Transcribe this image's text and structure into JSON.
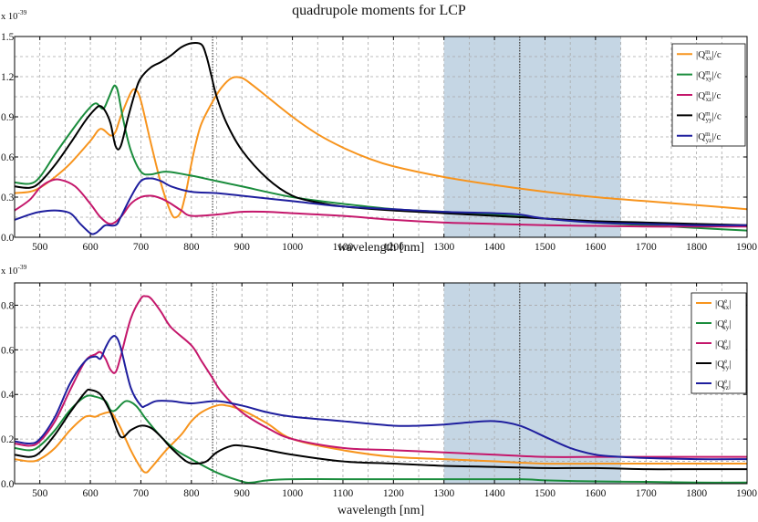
{
  "title": "quadrupole moments for LCP",
  "colors": {
    "orange": "#f7941d",
    "green": "#1a8c3c",
    "magenta": "#c4176b",
    "black": "#000000",
    "navy": "#1f1f9e",
    "band": "#c5d6e4",
    "grid": "#a8a8a8"
  },
  "chart_data": [
    {
      "type": "line",
      "id": "magnetic",
      "title": "quadrupole moments for LCP",
      "xlabel": "wavelength [nm]",
      "ylabel": "",
      "scale_label_base": "x 10",
      "scale_label_exp": "-39",
      "xlim": [
        450,
        1900
      ],
      "ylim": [
        0,
        1.5
      ],
      "xticks": [
        500,
        600,
        700,
        800,
        900,
        1000,
        1100,
        1200,
        1300,
        1400,
        1500,
        1600,
        1700,
        1800,
        1900
      ],
      "yticks": [
        0,
        0.3,
        0.6,
        0.9,
        1.2,
        1.5
      ],
      "ytick_labels": [
        "0.0",
        "0.3",
        "0.6",
        "0.9",
        "1.2",
        "1.5"
      ],
      "shaded_band": [
        1300,
        1650
      ],
      "vlines": [
        842,
        1450
      ],
      "legend_position": "top-right",
      "series": [
        {
          "name": "|Q^m_xx|/c",
          "sym": "Q",
          "sup": "m",
          "sub": "xx",
          "suffix": "|/c",
          "color": "#f7941d",
          "x": [
            450,
            480,
            500,
            530,
            560,
            600,
            620,
            640,
            650,
            660,
            680,
            690,
            700,
            720,
            740,
            760,
            770,
            780,
            790,
            800,
            810,
            820,
            840,
            860,
            880,
            900,
            920,
            950,
            1000,
            1050,
            1100,
            1150,
            1200,
            1300,
            1400,
            1500,
            1600,
            1700,
            1800,
            1900
          ],
          "y": [
            0.33,
            0.34,
            0.37,
            0.45,
            0.55,
            0.72,
            0.81,
            0.76,
            0.79,
            0.9,
            1.08,
            1.1,
            1.02,
            0.7,
            0.4,
            0.18,
            0.15,
            0.2,
            0.35,
            0.55,
            0.72,
            0.85,
            1.0,
            1.12,
            1.19,
            1.19,
            1.14,
            1.05,
            0.9,
            0.77,
            0.67,
            0.59,
            0.53,
            0.45,
            0.39,
            0.34,
            0.3,
            0.27,
            0.24,
            0.21
          ]
        },
        {
          "name": "|Q^m_xy|/c",
          "sym": "Q",
          "sup": "m",
          "sub": "xy",
          "suffix": "|/c",
          "color": "#1a8c3c",
          "x": [
            450,
            480,
            500,
            530,
            560,
            590,
            610,
            625,
            635,
            645,
            650,
            655,
            665,
            680,
            700,
            720,
            750,
            800,
            850,
            900,
            1000,
            1100,
            1200,
            1300,
            1400,
            1500,
            1600,
            1700,
            1800,
            1900
          ],
          "y": [
            0.41,
            0.4,
            0.45,
            0.62,
            0.78,
            0.93,
            1.0,
            0.96,
            1.03,
            1.12,
            1.13,
            1.08,
            0.88,
            0.65,
            0.49,
            0.47,
            0.49,
            0.46,
            0.42,
            0.38,
            0.3,
            0.25,
            0.21,
            0.19,
            0.17,
            0.14,
            0.11,
            0.09,
            0.07,
            0.05
          ]
        },
        {
          "name": "|Q^m_xz|/c",
          "sym": "Q",
          "sup": "m",
          "sub": "xz",
          "suffix": "|/c",
          "color": "#c4176b",
          "x": [
            450,
            480,
            500,
            520,
            540,
            570,
            600,
            620,
            640,
            660,
            680,
            700,
            720,
            740,
            760,
            780,
            800,
            850,
            900,
            950,
            1000,
            1100,
            1200,
            1300,
            1400,
            1500,
            1600,
            1700,
            1800,
            1900
          ],
          "y": [
            0.2,
            0.28,
            0.37,
            0.42,
            0.43,
            0.38,
            0.25,
            0.15,
            0.1,
            0.15,
            0.25,
            0.3,
            0.31,
            0.29,
            0.25,
            0.2,
            0.16,
            0.17,
            0.19,
            0.19,
            0.18,
            0.16,
            0.13,
            0.11,
            0.1,
            0.09,
            0.085,
            0.08,
            0.08,
            0.08
          ]
        },
        {
          "name": "|Q^m_yy|/c",
          "sym": "Q",
          "sup": "m",
          "sub": "yy",
          "suffix": "|/c",
          "color": "#000000",
          "x": [
            450,
            480,
            500,
            530,
            560,
            590,
            610,
            620,
            630,
            640,
            650,
            660,
            675,
            690,
            700,
            720,
            740,
            760,
            780,
            800,
            820,
            830,
            840,
            850,
            870,
            900,
            950,
            1000,
            1050,
            1100,
            1200,
            1300,
            1400,
            1450,
            1500,
            1600,
            1700,
            1800,
            1900
          ],
          "y": [
            0.38,
            0.37,
            0.41,
            0.54,
            0.7,
            0.87,
            0.96,
            0.98,
            0.94,
            0.85,
            0.68,
            0.68,
            0.9,
            1.1,
            1.19,
            1.27,
            1.31,
            1.36,
            1.42,
            1.45,
            1.44,
            1.35,
            1.2,
            1.05,
            0.85,
            0.65,
            0.44,
            0.31,
            0.26,
            0.23,
            0.2,
            0.18,
            0.16,
            0.15,
            0.14,
            0.12,
            0.11,
            0.1,
            0.09
          ]
        },
        {
          "name": "|Q^m_yz|/c",
          "sym": "Q",
          "sup": "m",
          "sub": "yz",
          "suffix": "|/c",
          "color": "#1f1f9e",
          "x": [
            450,
            480,
            500,
            530,
            560,
            580,
            600,
            610,
            620,
            630,
            650,
            660,
            680,
            700,
            720,
            740,
            760,
            800,
            850,
            900,
            1000,
            1100,
            1200,
            1300,
            1400,
            1450,
            1500,
            1600,
            1700,
            1800,
            1900
          ],
          "y": [
            0.13,
            0.17,
            0.19,
            0.2,
            0.18,
            0.1,
            0.03,
            0.03,
            0.06,
            0.09,
            0.09,
            0.15,
            0.3,
            0.42,
            0.44,
            0.42,
            0.38,
            0.34,
            0.33,
            0.31,
            0.27,
            0.23,
            0.21,
            0.19,
            0.18,
            0.17,
            0.14,
            0.11,
            0.1,
            0.09,
            0.09
          ]
        }
      ]
    },
    {
      "type": "line",
      "id": "electric",
      "title": "",
      "xlabel": "wavelength [nm]",
      "ylabel": "",
      "scale_label_base": "x 10",
      "scale_label_exp": "-39",
      "xlim": [
        450,
        1900
      ],
      "ylim": [
        0,
        0.9
      ],
      "xticks": [
        500,
        600,
        700,
        800,
        900,
        1000,
        1100,
        1200,
        1300,
        1400,
        1500,
        1600,
        1700,
        1800,
        1900
      ],
      "yticks": [
        0,
        0.2,
        0.4,
        0.6,
        0.8
      ],
      "ytick_labels": [
        "0.0",
        "0.2",
        "0.4",
        "0.6",
        "0.8"
      ],
      "shaded_band": [
        1300,
        1650
      ],
      "vlines": [
        842,
        1450
      ],
      "legend_position": "top-right",
      "series": [
        {
          "name": "|Q^e_xx|",
          "sym": "Q",
          "sup": "e",
          "sub": "xx",
          "suffix": "|",
          "color": "#f7941d",
          "x": [
            450,
            480,
            500,
            530,
            560,
            590,
            610,
            620,
            640,
            650,
            660,
            680,
            700,
            710,
            720,
            750,
            780,
            800,
            820,
            850,
            870,
            900,
            950,
            1000,
            1100,
            1200,
            1300,
            1400,
            1500,
            1600,
            1700,
            1800,
            1900
          ],
          "y": [
            0.11,
            0.1,
            0.11,
            0.16,
            0.24,
            0.3,
            0.3,
            0.31,
            0.32,
            0.29,
            0.25,
            0.15,
            0.07,
            0.05,
            0.07,
            0.15,
            0.22,
            0.28,
            0.32,
            0.35,
            0.35,
            0.33,
            0.27,
            0.2,
            0.15,
            0.12,
            0.11,
            0.1,
            0.09,
            0.09,
            0.09,
            0.09,
            0.09
          ]
        },
        {
          "name": "|Q^e_xy|",
          "sym": "Q",
          "sup": "e",
          "sub": "xy",
          "suffix": "|",
          "color": "#1a8c3c",
          "x": [
            450,
            480,
            500,
            530,
            560,
            590,
            610,
            630,
            640,
            650,
            670,
            690,
            710,
            740,
            770,
            800,
            850,
            900,
            920,
            950,
            1000,
            1100,
            1300,
            1450,
            1500,
            1600,
            1700,
            1800,
            1900
          ],
          "y": [
            0.16,
            0.15,
            0.17,
            0.24,
            0.33,
            0.39,
            0.39,
            0.37,
            0.33,
            0.33,
            0.37,
            0.35,
            0.29,
            0.21,
            0.15,
            0.11,
            0.05,
            0.01,
            0.005,
            0.015,
            0.02,
            0.02,
            0.02,
            0.02,
            0.015,
            0.01,
            0.008,
            0.005,
            0.005
          ]
        },
        {
          "name": "|Q^e_xz|",
          "sym": "Q",
          "sup": "e",
          "sub": "xz",
          "suffix": "|",
          "color": "#c4176b",
          "x": [
            450,
            480,
            500,
            530,
            560,
            590,
            610,
            620,
            630,
            640,
            650,
            660,
            680,
            700,
            710,
            720,
            740,
            760,
            800,
            820,
            840,
            860,
            900,
            950,
            1000,
            1100,
            1200,
            1300,
            1400,
            1500,
            1600,
            1700,
            1800,
            1900
          ],
          "y": [
            0.18,
            0.17,
            0.19,
            0.28,
            0.42,
            0.55,
            0.58,
            0.59,
            0.56,
            0.51,
            0.5,
            0.57,
            0.74,
            0.83,
            0.84,
            0.83,
            0.77,
            0.7,
            0.62,
            0.55,
            0.48,
            0.41,
            0.32,
            0.25,
            0.2,
            0.16,
            0.15,
            0.14,
            0.13,
            0.12,
            0.12,
            0.12,
            0.12,
            0.12
          ]
        },
        {
          "name": "|Q^e_yy|",
          "sym": "Q",
          "sup": "e",
          "sub": "yy",
          "suffix": "|",
          "color": "#000000",
          "x": [
            450,
            480,
            500,
            530,
            560,
            590,
            600,
            620,
            640,
            660,
            680,
            700,
            720,
            740,
            760,
            790,
            810,
            830,
            850,
            880,
            900,
            930,
            1000,
            1100,
            1200,
            1300,
            1400,
            1500,
            1600,
            1700,
            1800,
            1900
          ],
          "y": [
            0.13,
            0.12,
            0.14,
            0.22,
            0.32,
            0.41,
            0.42,
            0.4,
            0.32,
            0.21,
            0.24,
            0.26,
            0.25,
            0.21,
            0.16,
            0.1,
            0.09,
            0.1,
            0.14,
            0.17,
            0.17,
            0.16,
            0.13,
            0.1,
            0.09,
            0.08,
            0.075,
            0.07,
            0.07,
            0.065,
            0.065,
            0.065
          ]
        },
        {
          "name": "|Q^e_yz|",
          "sym": "Q",
          "sup": "e",
          "sub": "yz",
          "suffix": "|",
          "color": "#1f1f9e",
          "x": [
            450,
            480,
            500,
            530,
            560,
            590,
            610,
            620,
            630,
            640,
            650,
            660,
            680,
            700,
            710,
            730,
            760,
            800,
            850,
            900,
            950,
            1000,
            1100,
            1200,
            1250,
            1300,
            1350,
            1400,
            1450,
            1500,
            1550,
            1600,
            1650,
            1700,
            1800,
            1900
          ],
          "y": [
            0.19,
            0.18,
            0.2,
            0.3,
            0.45,
            0.55,
            0.57,
            0.56,
            0.61,
            0.65,
            0.66,
            0.61,
            0.43,
            0.35,
            0.35,
            0.37,
            0.37,
            0.36,
            0.37,
            0.35,
            0.32,
            0.3,
            0.28,
            0.26,
            0.26,
            0.265,
            0.275,
            0.28,
            0.26,
            0.21,
            0.16,
            0.13,
            0.12,
            0.115,
            0.11,
            0.11
          ]
        }
      ]
    }
  ]
}
